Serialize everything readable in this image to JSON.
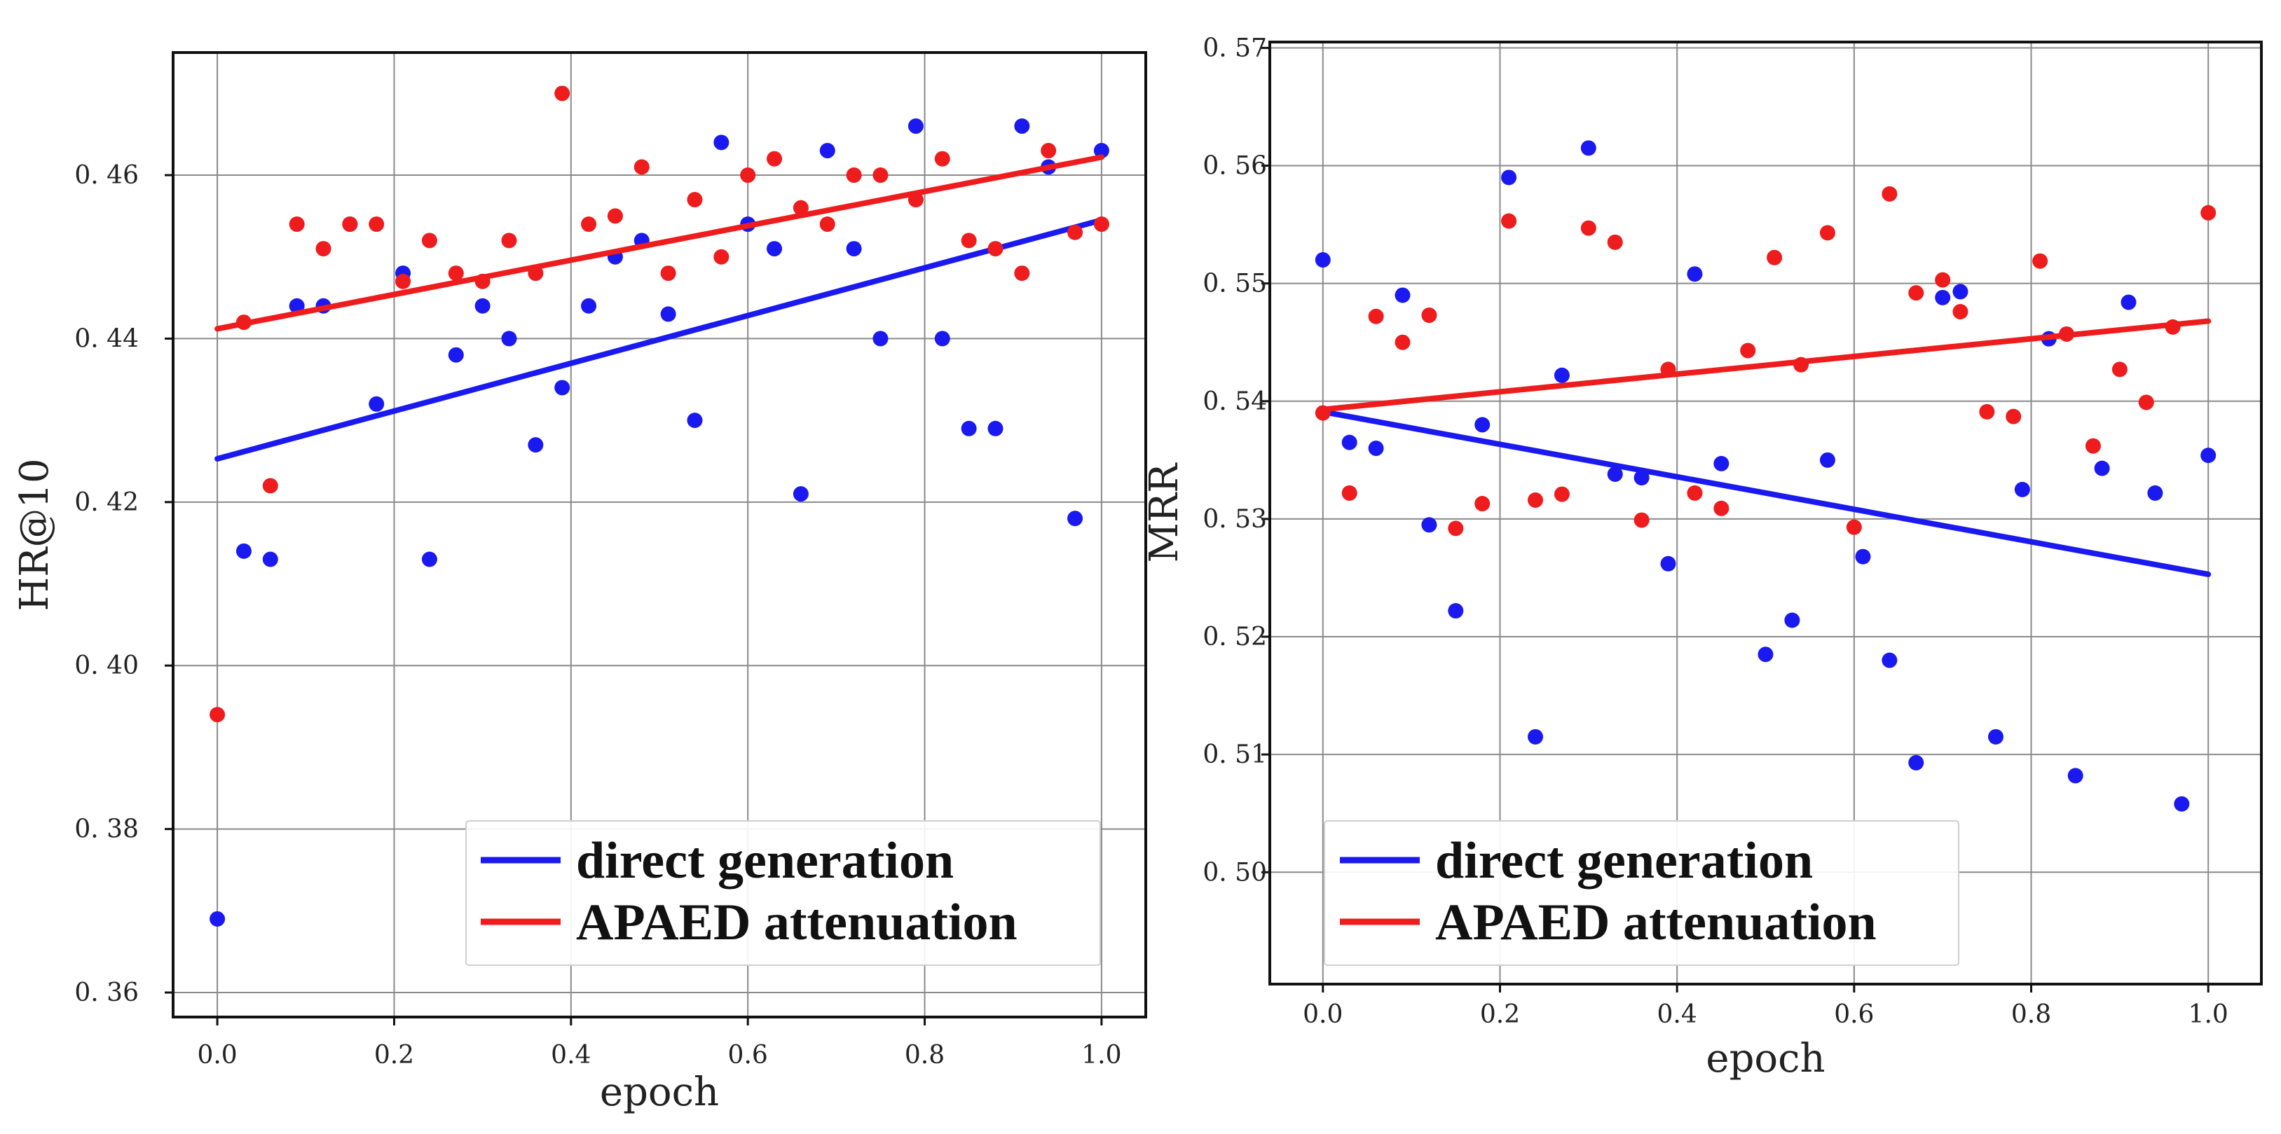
{
  "chart_data": [
    {
      "type": "scatter",
      "xlabel": "epoch",
      "ylabel": "HR@10",
      "xlim": [
        -0.05,
        1.05
      ],
      "ylim": [
        0.357,
        0.475
      ],
      "xticks": [
        0.0,
        0.2,
        0.4,
        0.6,
        0.8,
        1.0
      ],
      "xtick_labels": [
        "0.0",
        "0.2",
        "0.4",
        "0.6",
        "0.8",
        "1.0"
      ],
      "yticks": [
        0.36,
        0.38,
        0.4,
        0.42,
        0.44,
        0.46
      ],
      "ytick_labels": [
        "0. 36",
        "0. 38",
        "0. 40",
        "0. 42",
        "0. 44",
        "0. 46"
      ],
      "grid": true,
      "legend_position": "lower-right",
      "series": [
        {
          "name": "direct generation",
          "color": "#1a1af0",
          "points": [
            [
              0.0,
              0.369
            ],
            [
              0.03,
              0.414
            ],
            [
              0.06,
              0.413
            ],
            [
              0.09,
              0.444
            ],
            [
              0.12,
              0.444
            ],
            [
              0.15,
              0.454
            ],
            [
              0.18,
              0.432
            ],
            [
              0.21,
              0.448
            ],
            [
              0.24,
              0.413
            ],
            [
              0.27,
              0.438
            ],
            [
              0.3,
              0.444
            ],
            [
              0.33,
              0.44
            ],
            [
              0.36,
              0.427
            ],
            [
              0.39,
              0.434
            ],
            [
              0.42,
              0.444
            ],
            [
              0.45,
              0.45
            ],
            [
              0.48,
              0.452
            ],
            [
              0.51,
              0.443
            ],
            [
              0.54,
              0.43
            ],
            [
              0.57,
              0.464
            ],
            [
              0.6,
              0.454
            ],
            [
              0.63,
              0.451
            ],
            [
              0.66,
              0.421
            ],
            [
              0.69,
              0.463
            ],
            [
              0.72,
              0.451
            ],
            [
              0.75,
              0.44
            ],
            [
              0.79,
              0.466
            ],
            [
              0.82,
              0.44
            ],
            [
              0.85,
              0.429
            ],
            [
              0.88,
              0.429
            ],
            [
              0.91,
              0.466
            ],
            [
              0.94,
              0.461
            ],
            [
              0.97,
              0.418
            ],
            [
              1.0,
              0.463
            ]
          ],
          "fit": {
            "x0": 0.0,
            "y0": 0.4253,
            "x1": 1.0,
            "y1": 0.4545
          }
        },
        {
          "name": "APAED attenuation",
          "color": "#ee1c1c",
          "points": [
            [
              0.0,
              0.394
            ],
            [
              0.03,
              0.442
            ],
            [
              0.06,
              0.422
            ],
            [
              0.09,
              0.454
            ],
            [
              0.12,
              0.451
            ],
            [
              0.15,
              0.454
            ],
            [
              0.18,
              0.454
            ],
            [
              0.21,
              0.447
            ],
            [
              0.24,
              0.452
            ],
            [
              0.27,
              0.448
            ],
            [
              0.3,
              0.447
            ],
            [
              0.33,
              0.452
            ],
            [
              0.36,
              0.448
            ],
            [
              0.39,
              0.47
            ],
            [
              0.42,
              0.454
            ],
            [
              0.45,
              0.455
            ],
            [
              0.48,
              0.461
            ],
            [
              0.51,
              0.448
            ],
            [
              0.54,
              0.457
            ],
            [
              0.57,
              0.45
            ],
            [
              0.6,
              0.46
            ],
            [
              0.63,
              0.462
            ],
            [
              0.66,
              0.456
            ],
            [
              0.69,
              0.454
            ],
            [
              0.72,
              0.46
            ],
            [
              0.75,
              0.46
            ],
            [
              0.79,
              0.457
            ],
            [
              0.82,
              0.462
            ],
            [
              0.85,
              0.452
            ],
            [
              0.88,
              0.451
            ],
            [
              0.91,
              0.448
            ],
            [
              0.94,
              0.463
            ],
            [
              0.97,
              0.453
            ],
            [
              1.0,
              0.454
            ]
          ],
          "fit": {
            "x0": 0.0,
            "y0": 0.4412,
            "x1": 1.0,
            "y1": 0.4622
          }
        }
      ]
    },
    {
      "type": "scatter",
      "xlabel": "epoch",
      "ylabel": "MRR",
      "xlim": [
        -0.06,
        1.06
      ],
      "ylim": [
        0.4905,
        0.5705
      ],
      "xticks": [
        0.0,
        0.2,
        0.4,
        0.6,
        0.8,
        1.0
      ],
      "xtick_labels": [
        "0.0",
        "0.2",
        "0.4",
        "0.6",
        "0.8",
        "1.0"
      ],
      "yticks": [
        0.5,
        0.51,
        0.52,
        0.53,
        0.54,
        0.55,
        0.56,
        0.57
      ],
      "ytick_labels": [
        "0. 50",
        "0. 51",
        "0. 52",
        "0. 53",
        "0. 54",
        "0. 55",
        "0. 56",
        "0. 57"
      ],
      "grid": true,
      "legend_position": "lower-left",
      "series": [
        {
          "name": "direct generation",
          "color": "#1a1af0",
          "points": [
            [
              0.0,
              0.552
            ],
            [
              0.03,
              0.5365
            ],
            [
              0.06,
              0.536
            ],
            [
              0.09,
              0.549
            ],
            [
              0.12,
              0.5295
            ],
            [
              0.15,
              0.5222
            ],
            [
              0.18,
              0.538
            ],
            [
              0.21,
              0.559
            ],
            [
              0.24,
              0.5115
            ],
            [
              0.27,
              0.5422
            ],
            [
              0.3,
              0.5615
            ],
            [
              0.33,
              0.5338
            ],
            [
              0.36,
              0.5335
            ],
            [
              0.39,
              0.5262
            ],
            [
              0.42,
              0.5508
            ],
            [
              0.45,
              0.5347
            ],
            [
              0.5,
              0.5185
            ],
            [
              0.53,
              0.5214
            ],
            [
              0.57,
              0.535
            ],
            [
              0.61,
              0.5268
            ],
            [
              0.64,
              0.518
            ],
            [
              0.67,
              0.5093
            ],
            [
              0.7,
              0.5488
            ],
            [
              0.72,
              0.5493
            ],
            [
              0.76,
              0.5115
            ],
            [
              0.79,
              0.5325
            ],
            [
              0.82,
              0.5453
            ],
            [
              0.85,
              0.5082
            ],
            [
              0.88,
              0.5343
            ],
            [
              0.91,
              0.5484
            ],
            [
              0.94,
              0.5322
            ],
            [
              0.97,
              0.5058
            ],
            [
              1.0,
              0.5354
            ]
          ],
          "fit": {
            "x0": 0.0,
            "y0": 0.5391,
            "x1": 1.0,
            "y1": 0.5253
          }
        },
        {
          "name": "APAED attenuation",
          "color": "#ee1c1c",
          "points": [
            [
              0.0,
              0.539
            ],
            [
              0.03,
              0.5322
            ],
            [
              0.06,
              0.5472
            ],
            [
              0.09,
              0.545
            ],
            [
              0.12,
              0.5473
            ],
            [
              0.15,
              0.5292
            ],
            [
              0.18,
              0.5313
            ],
            [
              0.21,
              0.5553
            ],
            [
              0.24,
              0.5316
            ],
            [
              0.27,
              0.5321
            ],
            [
              0.3,
              0.5547
            ],
            [
              0.33,
              0.5535
            ],
            [
              0.36,
              0.5299
            ],
            [
              0.39,
              0.5427
            ],
            [
              0.42,
              0.5322
            ],
            [
              0.45,
              0.5309
            ],
            [
              0.48,
              0.5443
            ],
            [
              0.51,
              0.5522
            ],
            [
              0.54,
              0.5431
            ],
            [
              0.57,
              0.5543
            ],
            [
              0.6,
              0.5293
            ],
            [
              0.64,
              0.5576
            ],
            [
              0.67,
              0.5492
            ],
            [
              0.7,
              0.5503
            ],
            [
              0.72,
              0.5476
            ],
            [
              0.75,
              0.5391
            ],
            [
              0.78,
              0.5387
            ],
            [
              0.81,
              0.5519
            ],
            [
              0.84,
              0.5457
            ],
            [
              0.87,
              0.5362
            ],
            [
              0.9,
              0.5427
            ],
            [
              0.93,
              0.5399
            ],
            [
              0.96,
              0.5463
            ],
            [
              1.0,
              0.556
            ]
          ],
          "fit": {
            "x0": 0.0,
            "y0": 0.5393,
            "x1": 1.0,
            "y1": 0.5468
          }
        }
      ]
    }
  ]
}
